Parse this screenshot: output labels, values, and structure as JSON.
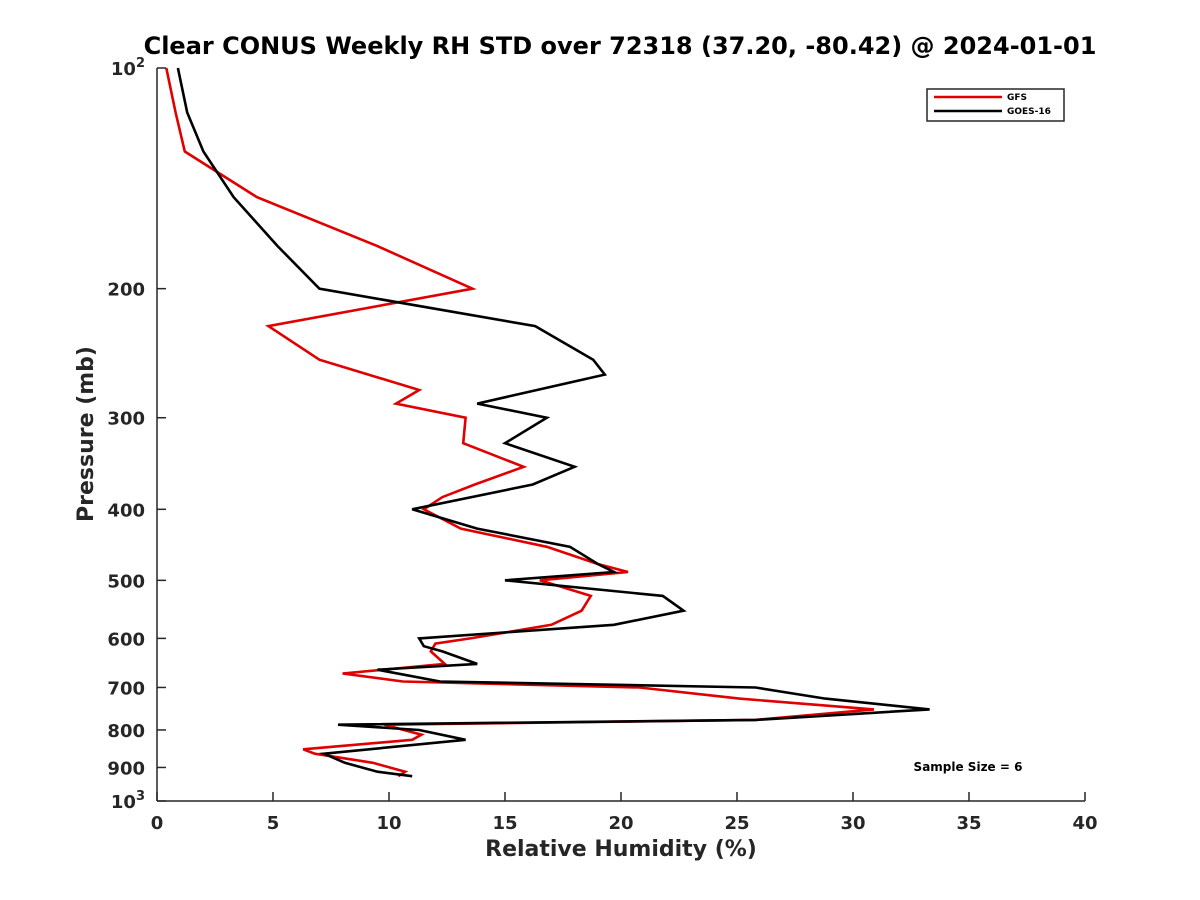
{
  "chart_data": {
    "type": "line",
    "title": "Clear CONUS Weekly RH STD over 72318 (37.20, -80.42) @ 2024-01-01",
    "xlabel": "Relative Humidity (%)",
    "ylabel": "Pressure (mb)",
    "xlim": [
      0,
      40
    ],
    "ylim": [
      100,
      1000
    ],
    "yscale": "log",
    "y_reversed": true,
    "xticks": [
      0,
      5,
      10,
      15,
      20,
      25,
      30,
      35,
      40
    ],
    "xtick_labels": [
      "0",
      "5",
      "10",
      "15",
      "20",
      "25",
      "30",
      "35",
      "40"
    ],
    "yticks": [
      200,
      300,
      400,
      500,
      600,
      700,
      800,
      900
    ],
    "ytick_labels": [
      "200",
      "300",
      "400",
      "500",
      "600",
      "700",
      "800",
      "900"
    ],
    "ytick_top_base": "10",
    "ytick_top_exp": "2",
    "ytick_bottom_base": "10",
    "ytick_bottom_exp": "3",
    "legend_position": "top-right",
    "annotation": "Sample Size = 6",
    "series": [
      {
        "name": "GFS",
        "color": "#e00000",
        "points": [
          [
            0.4,
            100
          ],
          [
            0.8,
            115
          ],
          [
            1.2,
            130
          ],
          [
            4.3,
            150
          ],
          [
            9.5,
            175
          ],
          [
            13.6,
            200
          ],
          [
            4.8,
            225
          ],
          [
            7.0,
            250
          ],
          [
            11.3,
            275
          ],
          [
            10.3,
            287
          ],
          [
            13.3,
            300
          ],
          [
            13.2,
            325
          ],
          [
            15.8,
            350
          ],
          [
            13.7,
            370
          ],
          [
            12.3,
            385
          ],
          [
            11.5,
            400
          ],
          [
            13.1,
            425
          ],
          [
            16.8,
            450
          ],
          [
            19.0,
            475
          ],
          [
            20.3,
            487
          ],
          [
            16.5,
            500
          ],
          [
            18.7,
            525
          ],
          [
            18.3,
            550
          ],
          [
            17.0,
            575
          ],
          [
            13.5,
            600
          ],
          [
            12.0,
            610
          ],
          [
            11.8,
            625
          ],
          [
            12.4,
            650
          ],
          [
            8.0,
            670
          ],
          [
            10.6,
            687
          ],
          [
            20.8,
            700
          ],
          [
            25.1,
            725
          ],
          [
            30.9,
            750
          ],
          [
            25.8,
            775
          ],
          [
            9.8,
            787
          ],
          [
            11.4,
            812
          ],
          [
            11.0,
            825
          ],
          [
            6.3,
            850
          ],
          [
            6.8,
            862
          ],
          [
            9.3,
            887
          ],
          [
            10.7,
            912
          ],
          [
            10.4,
            925
          ]
        ]
      },
      {
        "name": "GOES-16",
        "color": "#000000",
        "points": [
          [
            0.9,
            100
          ],
          [
            1.3,
            115
          ],
          [
            2.0,
            130
          ],
          [
            3.3,
            150
          ],
          [
            5.2,
            175
          ],
          [
            7.0,
            200
          ],
          [
            16.3,
            225
          ],
          [
            18.8,
            250
          ],
          [
            19.3,
            262
          ],
          [
            13.8,
            287
          ],
          [
            16.8,
            300
          ],
          [
            15.0,
            325
          ],
          [
            18.0,
            350
          ],
          [
            16.2,
            370
          ],
          [
            11.0,
            400
          ],
          [
            13.8,
            425
          ],
          [
            17.8,
            450
          ],
          [
            19.0,
            475
          ],
          [
            19.7,
            487
          ],
          [
            15.0,
            500
          ],
          [
            21.8,
            525
          ],
          [
            22.7,
            550
          ],
          [
            19.7,
            575
          ],
          [
            11.3,
            600
          ],
          [
            11.5,
            615
          ],
          [
            12.3,
            625
          ],
          [
            13.8,
            650
          ],
          [
            9.5,
            662
          ],
          [
            12.2,
            687
          ],
          [
            25.8,
            700
          ],
          [
            28.8,
            725
          ],
          [
            33.3,
            750
          ],
          [
            25.8,
            775
          ],
          [
            7.8,
            787
          ],
          [
            11.3,
            800
          ],
          [
            13.3,
            825
          ],
          [
            7.2,
            862
          ],
          [
            8.1,
            887
          ],
          [
            9.5,
            912
          ],
          [
            11.0,
            925
          ]
        ]
      }
    ]
  }
}
